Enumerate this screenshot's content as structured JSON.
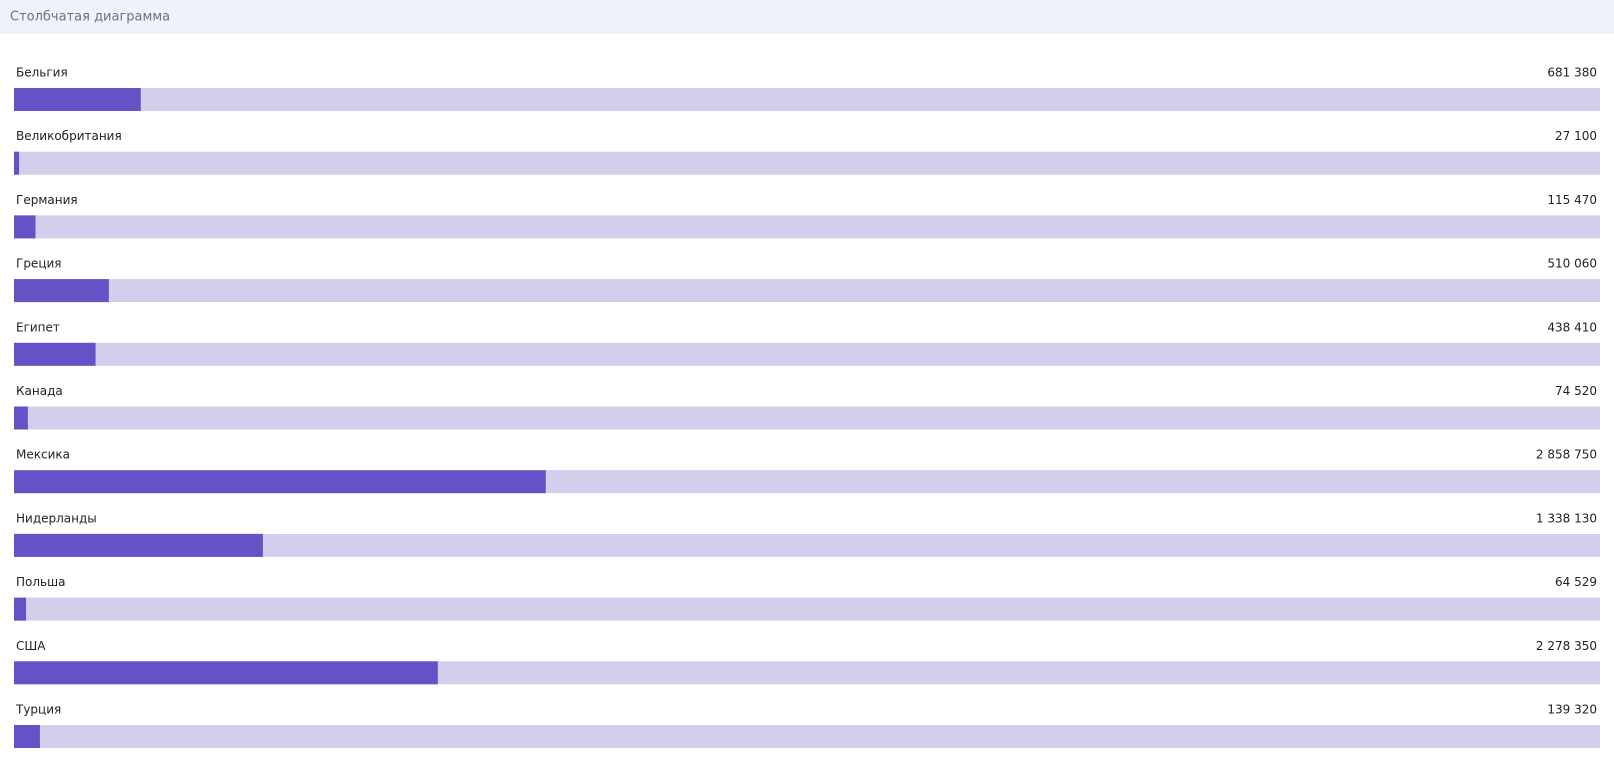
{
  "chart_data": {
    "type": "bar",
    "title": "Столбчатая диаграмма",
    "categories": [
      "Бельгия",
      "Великобритания",
      "Германия",
      "Греция",
      "Египет",
      "Канада",
      "Мексика",
      "Нидерланды",
      "Польша",
      "США",
      "Турция"
    ],
    "values": [
      681380,
      27100,
      115470,
      510060,
      438410,
      74520,
      2858750,
      1338130,
      64529,
      2278350,
      139320
    ],
    "value_labels": [
      "681 380",
      "27 100",
      "115 470",
      "510 060",
      "438 410",
      "74 520",
      "2 858 750",
      "1 338 130",
      "64 529",
      "2 278 350",
      "139 320"
    ],
    "color": "#6652c6",
    "track_color": "#d4cdeb"
  }
}
